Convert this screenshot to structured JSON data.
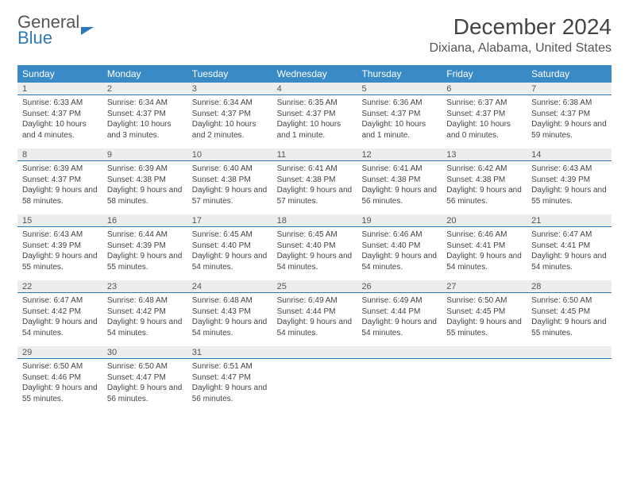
{
  "brand": {
    "part1": "General",
    "part2": "Blue"
  },
  "title": "December 2024",
  "location": "Dixiana, Alabama, United States",
  "colors": {
    "header_bg": "#3a8ac6",
    "num_bg": "#eceded",
    "num_border": "#2f78b7",
    "text": "#444444",
    "brand_blue": "#2f78b7"
  },
  "dow": [
    "Sunday",
    "Monday",
    "Tuesday",
    "Wednesday",
    "Thursday",
    "Friday",
    "Saturday"
  ],
  "weeks": [
    {
      "days": [
        {
          "n": "1",
          "sr": "Sunrise: 6:33 AM",
          "ss": "Sunset: 4:37 PM",
          "dl": "Daylight: 10 hours and 4 minutes."
        },
        {
          "n": "2",
          "sr": "Sunrise: 6:34 AM",
          "ss": "Sunset: 4:37 PM",
          "dl": "Daylight: 10 hours and 3 minutes."
        },
        {
          "n": "3",
          "sr": "Sunrise: 6:34 AM",
          "ss": "Sunset: 4:37 PM",
          "dl": "Daylight: 10 hours and 2 minutes."
        },
        {
          "n": "4",
          "sr": "Sunrise: 6:35 AM",
          "ss": "Sunset: 4:37 PM",
          "dl": "Daylight: 10 hours and 1 minute."
        },
        {
          "n": "5",
          "sr": "Sunrise: 6:36 AM",
          "ss": "Sunset: 4:37 PM",
          "dl": "Daylight: 10 hours and 1 minute."
        },
        {
          "n": "6",
          "sr": "Sunrise: 6:37 AM",
          "ss": "Sunset: 4:37 PM",
          "dl": "Daylight: 10 hours and 0 minutes."
        },
        {
          "n": "7",
          "sr": "Sunrise: 6:38 AM",
          "ss": "Sunset: 4:37 PM",
          "dl": "Daylight: 9 hours and 59 minutes."
        }
      ]
    },
    {
      "days": [
        {
          "n": "8",
          "sr": "Sunrise: 6:39 AM",
          "ss": "Sunset: 4:37 PM",
          "dl": "Daylight: 9 hours and 58 minutes."
        },
        {
          "n": "9",
          "sr": "Sunrise: 6:39 AM",
          "ss": "Sunset: 4:38 PM",
          "dl": "Daylight: 9 hours and 58 minutes."
        },
        {
          "n": "10",
          "sr": "Sunrise: 6:40 AM",
          "ss": "Sunset: 4:38 PM",
          "dl": "Daylight: 9 hours and 57 minutes."
        },
        {
          "n": "11",
          "sr": "Sunrise: 6:41 AM",
          "ss": "Sunset: 4:38 PM",
          "dl": "Daylight: 9 hours and 57 minutes."
        },
        {
          "n": "12",
          "sr": "Sunrise: 6:41 AM",
          "ss": "Sunset: 4:38 PM",
          "dl": "Daylight: 9 hours and 56 minutes."
        },
        {
          "n": "13",
          "sr": "Sunrise: 6:42 AM",
          "ss": "Sunset: 4:38 PM",
          "dl": "Daylight: 9 hours and 56 minutes."
        },
        {
          "n": "14",
          "sr": "Sunrise: 6:43 AM",
          "ss": "Sunset: 4:39 PM",
          "dl": "Daylight: 9 hours and 55 minutes."
        }
      ]
    },
    {
      "days": [
        {
          "n": "15",
          "sr": "Sunrise: 6:43 AM",
          "ss": "Sunset: 4:39 PM",
          "dl": "Daylight: 9 hours and 55 minutes."
        },
        {
          "n": "16",
          "sr": "Sunrise: 6:44 AM",
          "ss": "Sunset: 4:39 PM",
          "dl": "Daylight: 9 hours and 55 minutes."
        },
        {
          "n": "17",
          "sr": "Sunrise: 6:45 AM",
          "ss": "Sunset: 4:40 PM",
          "dl": "Daylight: 9 hours and 54 minutes."
        },
        {
          "n": "18",
          "sr": "Sunrise: 6:45 AM",
          "ss": "Sunset: 4:40 PM",
          "dl": "Daylight: 9 hours and 54 minutes."
        },
        {
          "n": "19",
          "sr": "Sunrise: 6:46 AM",
          "ss": "Sunset: 4:40 PM",
          "dl": "Daylight: 9 hours and 54 minutes."
        },
        {
          "n": "20",
          "sr": "Sunrise: 6:46 AM",
          "ss": "Sunset: 4:41 PM",
          "dl": "Daylight: 9 hours and 54 minutes."
        },
        {
          "n": "21",
          "sr": "Sunrise: 6:47 AM",
          "ss": "Sunset: 4:41 PM",
          "dl": "Daylight: 9 hours and 54 minutes."
        }
      ]
    },
    {
      "days": [
        {
          "n": "22",
          "sr": "Sunrise: 6:47 AM",
          "ss": "Sunset: 4:42 PM",
          "dl": "Daylight: 9 hours and 54 minutes."
        },
        {
          "n": "23",
          "sr": "Sunrise: 6:48 AM",
          "ss": "Sunset: 4:42 PM",
          "dl": "Daylight: 9 hours and 54 minutes."
        },
        {
          "n": "24",
          "sr": "Sunrise: 6:48 AM",
          "ss": "Sunset: 4:43 PM",
          "dl": "Daylight: 9 hours and 54 minutes."
        },
        {
          "n": "25",
          "sr": "Sunrise: 6:49 AM",
          "ss": "Sunset: 4:44 PM",
          "dl": "Daylight: 9 hours and 54 minutes."
        },
        {
          "n": "26",
          "sr": "Sunrise: 6:49 AM",
          "ss": "Sunset: 4:44 PM",
          "dl": "Daylight: 9 hours and 54 minutes."
        },
        {
          "n": "27",
          "sr": "Sunrise: 6:50 AM",
          "ss": "Sunset: 4:45 PM",
          "dl": "Daylight: 9 hours and 55 minutes."
        },
        {
          "n": "28",
          "sr": "Sunrise: 6:50 AM",
          "ss": "Sunset: 4:45 PM",
          "dl": "Daylight: 9 hours and 55 minutes."
        }
      ]
    },
    {
      "days": [
        {
          "n": "29",
          "sr": "Sunrise: 6:50 AM",
          "ss": "Sunset: 4:46 PM",
          "dl": "Daylight: 9 hours and 55 minutes."
        },
        {
          "n": "30",
          "sr": "Sunrise: 6:50 AM",
          "ss": "Sunset: 4:47 PM",
          "dl": "Daylight: 9 hours and 56 minutes."
        },
        {
          "n": "31",
          "sr": "Sunrise: 6:51 AM",
          "ss": "Sunset: 4:47 PM",
          "dl": "Daylight: 9 hours and 56 minutes."
        },
        null,
        null,
        null,
        null
      ]
    }
  ]
}
